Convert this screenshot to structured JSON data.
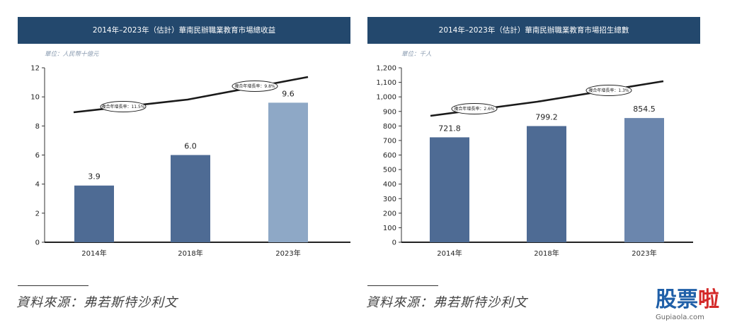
{
  "chart_data": [
    {
      "type": "bar",
      "title": "2014年–2023年（估計）華南民辦職業教育市場總收益",
      "unit": "單位：人民幣十億元",
      "categories": [
        "2014年",
        "2018年",
        "2023年"
      ],
      "values": [
        3.9,
        6.0,
        9.6
      ],
      "value_labels": [
        "3.9",
        "6.0",
        "9.6"
      ],
      "bar_colors": [
        "#4e6b94",
        "#4e6b94",
        "#8ea8c6"
      ],
      "ylim": [
        0,
        12
      ],
      "yticks": [
        0,
        2,
        4,
        6,
        8,
        10,
        12
      ],
      "ytick_labels": [
        "0",
        "2",
        "4",
        "6",
        "8",
        "10",
        "12"
      ],
      "cagr": [
        {
          "label": "複合年增長率：11.5%"
        },
        {
          "label": "複合年增長率：9.8%"
        }
      ],
      "source": "資料來源：弗若斯特沙利文"
    },
    {
      "type": "bar",
      "title": "2014年–2023年（估計）華南民辦職業教育市場招生總數",
      "unit": "單位：千人",
      "categories": [
        "2014年",
        "2018年",
        "2023年"
      ],
      "values": [
        721.8,
        799.2,
        854.5
      ],
      "value_labels": [
        "721.8",
        "799.2",
        "854.5"
      ],
      "bar_colors": [
        "#4e6b94",
        "#4e6b94",
        "#6b86ad"
      ],
      "ylim": [
        0,
        1200
      ],
      "yticks": [
        0,
        100,
        200,
        300,
        400,
        500,
        600,
        700,
        800,
        900,
        1000,
        1100,
        1200
      ],
      "ytick_labels": [
        "0",
        "100",
        "200",
        "300",
        "400",
        "500",
        "600",
        "700",
        "800",
        "900",
        "1,000",
        "1,100",
        "1,200"
      ],
      "cagr": [
        {
          "label": "複合年增長率：2.6%"
        },
        {
          "label": "複合年增長率：1.3%"
        }
      ],
      "source": "資料來源：弗若斯特沙利文"
    }
  ],
  "watermark": {
    "chars": [
      "股",
      "票",
      "啦"
    ],
    "url": "Gupiaola.com"
  }
}
